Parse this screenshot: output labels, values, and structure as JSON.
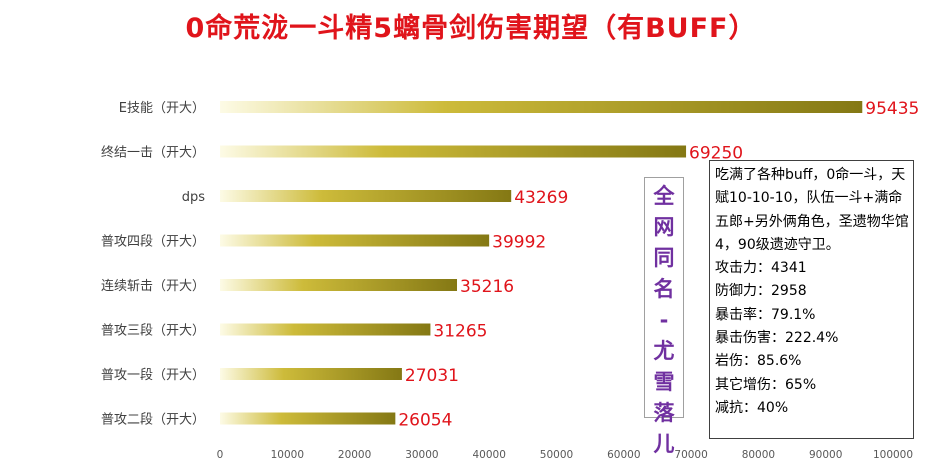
{
  "chart_data": {
    "type": "bar",
    "orientation": "horizontal",
    "title": "0命荒泷一斗精5螭骨剑伤害期望（有BUFF）",
    "categories": [
      "E技能（开大）",
      "终结一击（开大）",
      "dps",
      "普攻四段（开大）",
      "连续斩击（开大）",
      "普攻三段（开大）",
      "普攻一段（开大）",
      "普攻二段（开大）"
    ],
    "values": [
      95435,
      69250,
      43269,
      39992,
      35216,
      31265,
      27031,
      26054
    ],
    "xlim": [
      0,
      100000
    ],
    "xticks": [
      0,
      10000,
      20000,
      30000,
      40000,
      50000,
      60000,
      70000,
      80000,
      90000,
      100000
    ],
    "xlabel": "",
    "ylabel": "",
    "grid": false,
    "data_labels": true,
    "colors": {
      "bar_start": "#fdfbe6",
      "bar_mid": "#cdbb3a",
      "bar_end": "#847814",
      "label": "#e0141b",
      "title": "#e0141b"
    }
  },
  "side_note": {
    "chars": [
      "全",
      "网",
      "同",
      "名",
      "-",
      "尤",
      "雪",
      "落",
      "儿"
    ],
    "color": "#7030a0"
  },
  "info": {
    "description": "吃满了各种buff，0命一斗，天赋10-10-10，队伍一斗+满命五郎+另外俩角色，圣遗物华馆4，90级遗迹守卫。",
    "stats": [
      "攻击力：4341",
      "防御力：2958",
      "暴击率：79.1%",
      "暴击伤害：222.4%",
      "岩伤：85.6%",
      "其它增伤：65%",
      "减抗：40%"
    ]
  }
}
